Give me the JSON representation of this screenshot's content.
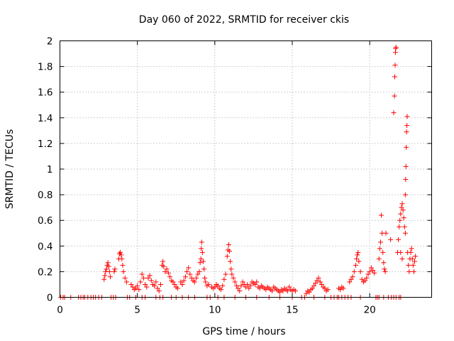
{
  "chart_data": {
    "type": "scatter",
    "title": "Day 060 of 2022, SRMTID for receiver ckis",
    "xlabel": "GPS time / hours",
    "ylabel": "SRMTID / TECUs",
    "xlim": [
      0,
      24
    ],
    "ylim": [
      0,
      2
    ],
    "grid": true,
    "marker": "+",
    "color": "#ff0000",
    "xticks": [
      0,
      5,
      10,
      15,
      20
    ],
    "xtick_labels": [
      "0",
      "5",
      "10",
      "15",
      "20"
    ],
    "yticks": [
      0,
      0.2,
      0.4,
      0.6,
      0.8,
      1,
      1.2,
      1.4,
      1.6,
      1.8,
      2
    ],
    "ytick_labels": [
      "0",
      "0.2",
      "0.4",
      "0.6",
      "0.8",
      "1",
      "1.2",
      "1.4",
      "1.6",
      "1.8",
      "2"
    ],
    "series": [
      {
        "name": "SRMTID",
        "points": [
          [
            0.05,
            0
          ],
          [
            0.2,
            0
          ],
          [
            0.3,
            0
          ],
          [
            0.7,
            0
          ],
          [
            1.2,
            0
          ],
          [
            1.35,
            0
          ],
          [
            1.5,
            0
          ],
          [
            1.6,
            0
          ],
          [
            1.8,
            0
          ],
          [
            2.0,
            0
          ],
          [
            2.15,
            0
          ],
          [
            2.3,
            0
          ],
          [
            2.5,
            0
          ],
          [
            2.7,
            0
          ],
          [
            2.85,
            0.14
          ],
          [
            2.9,
            0.17
          ],
          [
            2.95,
            0.2
          ],
          [
            3.0,
            0.22
          ],
          [
            3.05,
            0.25
          ],
          [
            3.1,
            0.27
          ],
          [
            3.15,
            0.24
          ],
          [
            3.2,
            0.2
          ],
          [
            3.25,
            0.16
          ],
          [
            3.3,
            0
          ],
          [
            3.45,
            0
          ],
          [
            3.6,
            0
          ],
          [
            3.5,
            0.2
          ],
          [
            3.55,
            0.22
          ],
          [
            3.8,
            0.3
          ],
          [
            3.85,
            0.34
          ],
          [
            3.9,
            0.35
          ],
          [
            3.95,
            0.33
          ],
          [
            4.0,
            0.3
          ],
          [
            4.05,
            0.25
          ],
          [
            4.1,
            0.2
          ],
          [
            4.2,
            0.15
          ],
          [
            4.3,
            0.12
          ],
          [
            4.35,
            0
          ],
          [
            4.5,
            0
          ],
          [
            4.9,
            0
          ],
          [
            4.6,
            0.1
          ],
          [
            4.7,
            0.08
          ],
          [
            4.8,
            0.06
          ],
          [
            4.9,
            0.07
          ],
          [
            5.0,
            0.09
          ],
          [
            5.1,
            0.06
          ],
          [
            5.2,
            0.12
          ],
          [
            5.3,
            0.18
          ],
          [
            5.4,
            0.15
          ],
          [
            5.5,
            0.1
          ],
          [
            5.6,
            0.08
          ],
          [
            5.3,
            0
          ],
          [
            5.5,
            0
          ],
          [
            5.7,
            0.15
          ],
          [
            5.8,
            0.17
          ],
          [
            5.9,
            0.13
          ],
          [
            6.0,
            0.1
          ],
          [
            6.1,
            0.09
          ],
          [
            6.2,
            0.12
          ],
          [
            6.3,
            0.07
          ],
          [
            6.4,
            0.05
          ],
          [
            6.5,
            0.1
          ],
          [
            6.2,
            0
          ],
          [
            6.45,
            0
          ],
          [
            6.65,
            0
          ],
          [
            6.6,
            0.25
          ],
          [
            6.65,
            0.28
          ],
          [
            6.7,
            0.24
          ],
          [
            6.8,
            0.2
          ],
          [
            6.9,
            0.22
          ],
          [
            7.0,
            0.19
          ],
          [
            7.1,
            0.16
          ],
          [
            7.2,
            0.13
          ],
          [
            7.3,
            0.12
          ],
          [
            7.4,
            0.1
          ],
          [
            7.5,
            0.08
          ],
          [
            7.6,
            0.07
          ],
          [
            7.2,
            0
          ],
          [
            7.5,
            0
          ],
          [
            7.9,
            0
          ],
          [
            7.8,
            0.12
          ],
          [
            7.9,
            0.1
          ],
          [
            8.0,
            0.13
          ],
          [
            8.1,
            0.16
          ],
          [
            8.2,
            0.2
          ],
          [
            8.3,
            0.23
          ],
          [
            8.4,
            0.18
          ],
          [
            8.5,
            0.15
          ],
          [
            8.6,
            0.13
          ],
          [
            8.7,
            0.12
          ],
          [
            8.8,
            0.15
          ],
          [
            8.9,
            0.18
          ],
          [
            8.3,
            0
          ],
          [
            8.7,
            0
          ],
          [
            9.0,
            0.2
          ],
          [
            9.05,
            0.27
          ],
          [
            9.1,
            0.3
          ],
          [
            9.12,
            0.38
          ],
          [
            9.15,
            0.43
          ],
          [
            9.2,
            0.35
          ],
          [
            9.25,
            0.28
          ],
          [
            9.3,
            0.22
          ],
          [
            9.35,
            0.15
          ],
          [
            9.4,
            0.12
          ],
          [
            9.5,
            0.09
          ],
          [
            9.6,
            0.1
          ],
          [
            9.5,
            0
          ],
          [
            9.7,
            0
          ],
          [
            9.8,
            0.08
          ],
          [
            9.9,
            0.07
          ],
          [
            10.0,
            0.08
          ],
          [
            10.1,
            0.1
          ],
          [
            10.2,
            0.09
          ],
          [
            10.3,
            0.07
          ],
          [
            10.4,
            0.06
          ],
          [
            10.5,
            0.09
          ],
          [
            10.6,
            0.14
          ],
          [
            10.7,
            0.18
          ],
          [
            10.2,
            0
          ],
          [
            10.6,
            0
          ],
          [
            10.8,
            0.32
          ],
          [
            10.85,
            0.37
          ],
          [
            10.9,
            0.41
          ],
          [
            10.95,
            0.36
          ],
          [
            11.0,
            0.28
          ],
          [
            11.05,
            0.22
          ],
          [
            11.1,
            0.18
          ],
          [
            11.2,
            0.15
          ],
          [
            11.3,
            0.12
          ],
          [
            11.4,
            0.09
          ],
          [
            11.5,
            0.07
          ],
          [
            11.6,
            0.05
          ],
          [
            11.3,
            0
          ],
          [
            11.7,
            0.09
          ],
          [
            11.8,
            0.12
          ],
          [
            11.9,
            0.1
          ],
          [
            12.0,
            0.08
          ],
          [
            12.1,
            0.1
          ],
          [
            12.2,
            0.07
          ],
          [
            12.3,
            0.09
          ],
          [
            12.4,
            0.12
          ],
          [
            12.5,
            0.11
          ],
          [
            12.6,
            0.1
          ],
          [
            12.7,
            0.12
          ],
          [
            12.8,
            0.08
          ],
          [
            12.9,
            0.07
          ],
          [
            12.0,
            0
          ],
          [
            12.7,
            0
          ],
          [
            13.0,
            0.09
          ],
          [
            13.1,
            0.08
          ],
          [
            13.2,
            0.07
          ],
          [
            13.3,
            0.06
          ],
          [
            13.4,
            0.08
          ],
          [
            13.5,
            0.07
          ],
          [
            13.6,
            0.06
          ],
          [
            13.7,
            0.05
          ],
          [
            13.8,
            0.08
          ],
          [
            13.9,
            0.07
          ],
          [
            13.5,
            0
          ],
          [
            14.0,
            0.06
          ],
          [
            14.1,
            0.05
          ],
          [
            14.2,
            0.04
          ],
          [
            14.3,
            0.06
          ],
          [
            14.4,
            0.05
          ],
          [
            14.5,
            0.07
          ],
          [
            14.6,
            0.06
          ],
          [
            14.7,
            0.05
          ],
          [
            14.8,
            0.08
          ],
          [
            14.9,
            0.06
          ],
          [
            15.0,
            0.05
          ],
          [
            15.1,
            0.06
          ],
          [
            15.2,
            0.05
          ],
          [
            14.2,
            0
          ],
          [
            15.0,
            0
          ],
          [
            15.6,
            0
          ],
          [
            15.8,
            0
          ],
          [
            15.9,
            0.03
          ],
          [
            16.0,
            0.05
          ],
          [
            16.1,
            0.04
          ],
          [
            16.2,
            0.06
          ],
          [
            16.3,
            0.07
          ],
          [
            16.4,
            0.09
          ],
          [
            16.5,
            0.11
          ],
          [
            16.6,
            0.13
          ],
          [
            16.7,
            0.15
          ],
          [
            16.8,
            0.12
          ],
          [
            16.9,
            0.1
          ],
          [
            17.0,
            0.08
          ],
          [
            17.1,
            0.07
          ],
          [
            17.2,
            0.05
          ],
          [
            17.3,
            0.06
          ],
          [
            16.4,
            0
          ],
          [
            17.1,
            0
          ],
          [
            17.5,
            0
          ],
          [
            17.7,
            0
          ],
          [
            17.9,
            0
          ],
          [
            18.0,
            0
          ],
          [
            18.2,
            0
          ],
          [
            18.0,
            0.07
          ],
          [
            18.1,
            0.06
          ],
          [
            18.2,
            0.08
          ],
          [
            18.3,
            0.07
          ],
          [
            18.4,
            0
          ],
          [
            18.6,
            0
          ],
          [
            18.8,
            0
          ],
          [
            18.7,
            0.12
          ],
          [
            18.8,
            0.14
          ],
          [
            18.9,
            0.16
          ],
          [
            19.0,
            0.2
          ],
          [
            19.1,
            0.25
          ],
          [
            19.15,
            0.3
          ],
          [
            19.2,
            0.33
          ],
          [
            19.25,
            0.35
          ],
          [
            19.3,
            0.28
          ],
          [
            19.4,
            0.2
          ],
          [
            19.5,
            0.14
          ],
          [
            19.6,
            0.12
          ],
          [
            19.7,
            0.13
          ],
          [
            19.8,
            0.15
          ],
          [
            19.9,
            0.18
          ],
          [
            20.0,
            0.2
          ],
          [
            20.1,
            0.23
          ],
          [
            20.2,
            0.21
          ],
          [
            20.3,
            0.19
          ],
          [
            19.4,
            0
          ],
          [
            20.4,
            0
          ],
          [
            20.5,
            0
          ],
          [
            20.6,
            0.3
          ],
          [
            20.65,
            0.38
          ],
          [
            20.7,
            0.43
          ],
          [
            20.75,
            0.64
          ],
          [
            20.8,
            0.5
          ],
          [
            20.85,
            0.35
          ],
          [
            20.9,
            0.27
          ],
          [
            20.95,
            0.22
          ],
          [
            21.0,
            0.2
          ],
          [
            21.05,
            0.5
          ],
          [
            20.6,
            0
          ],
          [
            20.9,
            0
          ],
          [
            21.2,
            0
          ],
          [
            21.35,
            0.45
          ],
          [
            21.4,
            0
          ],
          [
            21.55,
            1.44
          ],
          [
            21.6,
            1.57
          ],
          [
            21.62,
            1.72
          ],
          [
            21.64,
            1.81
          ],
          [
            21.66,
            1.91
          ],
          [
            21.68,
            1.94
          ],
          [
            21.7,
            1.95
          ],
          [
            21.55,
            0
          ],
          [
            21.7,
            0
          ],
          [
            21.8,
            0.35
          ],
          [
            21.85,
            0.45
          ],
          [
            21.9,
            0.55
          ],
          [
            21.95,
            0.6
          ],
          [
            22.0,
            0.65
          ],
          [
            22.05,
            0.7
          ],
          [
            22.1,
            0.73
          ],
          [
            22.15,
            0.68
          ],
          [
            22.2,
            0.62
          ],
          [
            22.25,
            0.55
          ],
          [
            22.3,
            0.5
          ],
          [
            22.0,
            0.35
          ],
          [
            22.1,
            0.3
          ],
          [
            21.9,
            0
          ],
          [
            22.0,
            0
          ],
          [
            22.3,
            0.8
          ],
          [
            22.32,
            0.92
          ],
          [
            22.34,
            1.02
          ],
          [
            22.36,
            1.17
          ],
          [
            22.38,
            1.29
          ],
          [
            22.4,
            1.34
          ],
          [
            22.42,
            1.41
          ],
          [
            22.45,
            0.35
          ],
          [
            22.5,
            0.25
          ],
          [
            22.55,
            0.2
          ],
          [
            22.6,
            0.3
          ],
          [
            22.65,
            0.35
          ],
          [
            22.7,
            0.38
          ],
          [
            22.75,
            0.3
          ],
          [
            22.8,
            0.25
          ],
          [
            22.85,
            0.2
          ],
          [
            22.9,
            0.28
          ],
          [
            22.95,
            0.32
          ]
        ]
      }
    ]
  }
}
